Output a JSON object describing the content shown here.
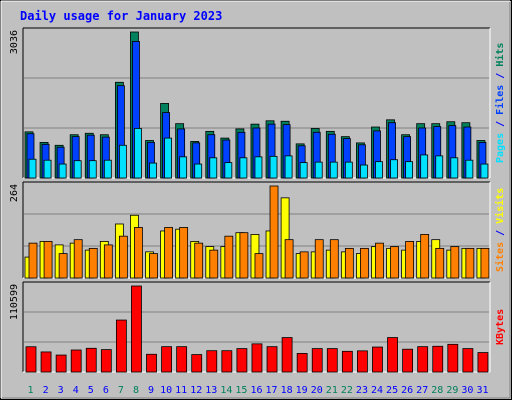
{
  "title": "Daily usage for January 2023",
  "colors": {
    "title": "#0000ff",
    "hits": "#00805c",
    "files": "#0040ff",
    "pages": "#00e0ff",
    "visits": "#ffff00",
    "sites": "#ff8000",
    "kbytes": "#ff0000",
    "weekend_label": "#00805c",
    "weekday_label": "#0000ff",
    "plot_bg": "#c0c0c0",
    "frame_bg": "#c0c0c0"
  },
  "chart_data": [
    {
      "type": "bar",
      "panel": "hits-files-pages",
      "y_max_label": "3036",
      "ylim": [
        0,
        3036
      ],
      "right_labels": [
        {
          "text": "Pages",
          "color_key": "pages"
        },
        {
          "text": " / ",
          "color_key": "title"
        },
        {
          "text": "Files",
          "color_key": "files"
        },
        {
          "text": " / ",
          "color_key": "title"
        },
        {
          "text": "Hits",
          "color_key": "hits"
        }
      ],
      "series": [
        {
          "name": "Hits",
          "color_key": "hits",
          "values": [
            960,
            740,
            680,
            900,
            930,
            900,
            1990,
            3036,
            780,
            1550,
            1130,
            760,
            970,
            830,
            1020,
            1120,
            1190,
            1180,
            710,
            1030,
            970,
            860,
            730,
            1060,
            1210,
            900,
            1130,
            1130,
            1170,
            1150,
            780
          ]
        },
        {
          "name": "Files",
          "color_key": "files",
          "values": [
            920,
            700,
            640,
            860,
            890,
            850,
            1920,
            2840,
            740,
            1360,
            1020,
            730,
            900,
            790,
            950,
            1040,
            1120,
            1110,
            670,
            950,
            910,
            820,
            690,
            980,
            1150,
            860,
            1040,
            1070,
            1090,
            1060,
            740
          ]
        },
        {
          "name": "Pages",
          "color_key": "pages",
          "values": [
            390,
            370,
            290,
            360,
            360,
            370,
            680,
            1030,
            310,
            830,
            440,
            290,
            420,
            320,
            420,
            440,
            450,
            460,
            320,
            330,
            330,
            330,
            270,
            340,
            380,
            340,
            480,
            460,
            420,
            370,
            290
          ]
        }
      ]
    },
    {
      "type": "bar",
      "panel": "visits-sites",
      "y_max_label": "264",
      "ylim": [
        0,
        264
      ],
      "right_labels": [
        {
          "text": "Sites",
          "color_key": "sites"
        },
        {
          "text": " / ",
          "color_key": "title"
        },
        {
          "text": "Visits",
          "color_key": "visits"
        }
      ],
      "series": [
        {
          "name": "Visits",
          "color_key": "visits",
          "values": [
            60,
            105,
            95,
            100,
            80,
            105,
            155,
            180,
            75,
            135,
            140,
            105,
            90,
            90,
            130,
            125,
            135,
            230,
            70,
            75,
            80,
            75,
            70,
            90,
            85,
            80,
            105,
            110,
            80,
            85,
            85
          ]
        },
        {
          "name": "Sites",
          "color_key": "sites",
          "values": [
            100,
            105,
            70,
            110,
            85,
            95,
            120,
            145,
            70,
            145,
            145,
            100,
            80,
            120,
            130,
            70,
            264,
            110,
            75,
            110,
            110,
            85,
            85,
            100,
            90,
            105,
            125,
            85,
            90,
            85,
            85
          ]
        }
      ]
    },
    {
      "type": "bar",
      "panel": "kbytes",
      "y_max_label": "110599",
      "ylim": [
        0,
        110599
      ],
      "right_labels": [
        {
          "text": "KBytes",
          "color_key": "kbytes"
        }
      ],
      "series": [
        {
          "name": "KBytes",
          "color_key": "kbytes",
          "values": [
            32500,
            25800,
            21800,
            28300,
            30500,
            28800,
            66800,
            110599,
            22800,
            32600,
            32600,
            22400,
            27400,
            27400,
            30100,
            36200,
            32600,
            44300,
            23900,
            30100,
            30100,
            26600,
            27200,
            32100,
            44300,
            29300,
            32600,
            33100,
            35600,
            30100,
            25000
          ]
        }
      ]
    }
  ],
  "x_labels": [
    "1",
    "2",
    "3",
    "4",
    "5",
    "6",
    "7",
    "8",
    "9",
    "10",
    "11",
    "12",
    "13",
    "14",
    "15",
    "16",
    "17",
    "18",
    "19",
    "20",
    "21",
    "22",
    "23",
    "24",
    "25",
    "26",
    "27",
    "28",
    "29",
    "30",
    "31"
  ],
  "weekend_days": [
    1,
    7,
    8,
    14,
    15,
    21,
    22,
    28,
    29
  ]
}
